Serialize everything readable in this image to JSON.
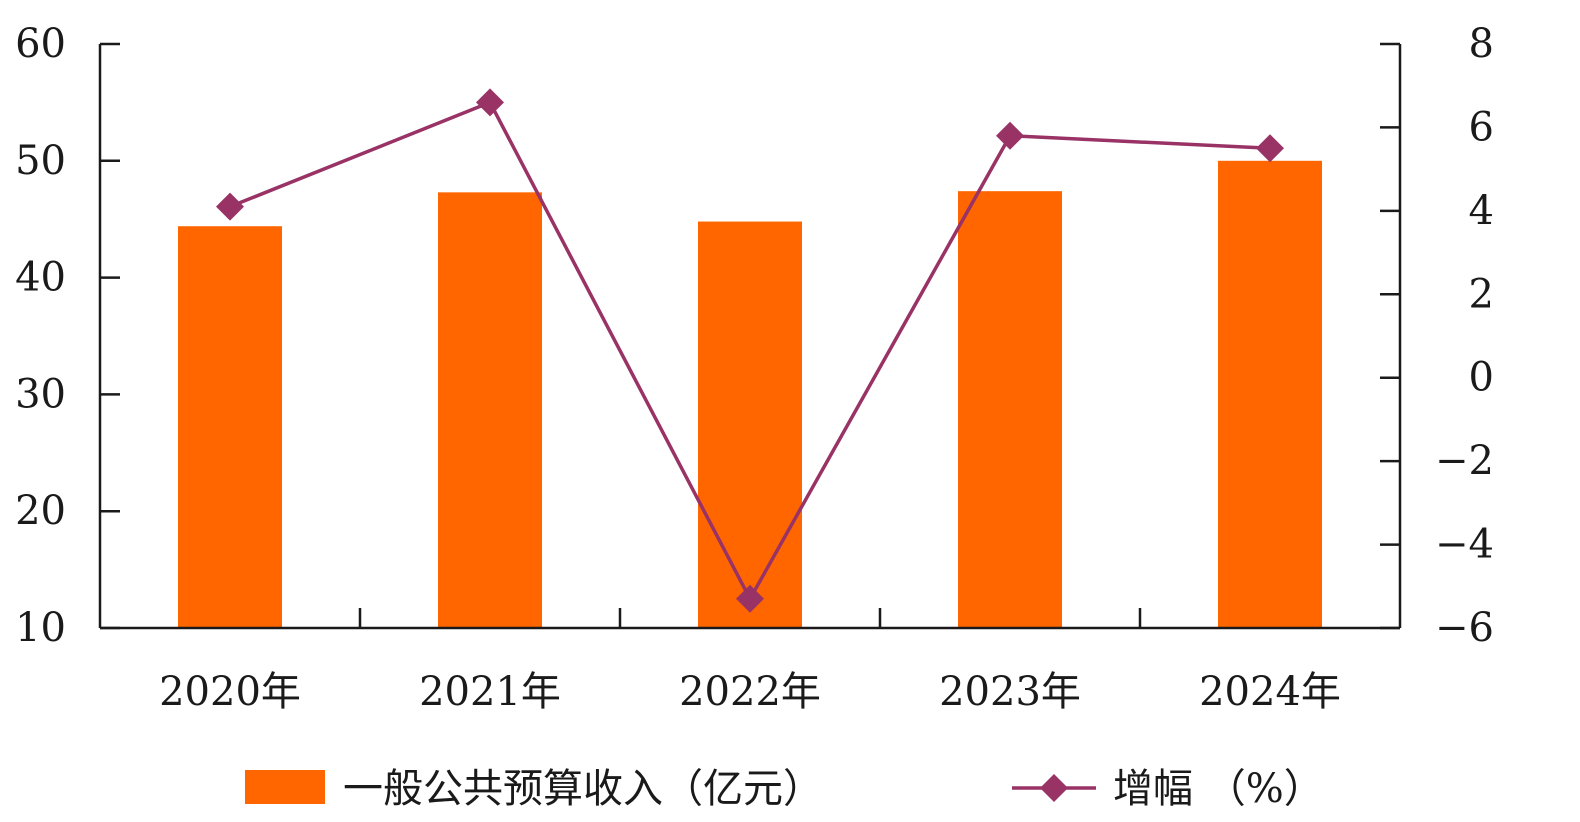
{
  "chart_data": {
    "type": "bar+line",
    "categories": [
      "2020年",
      "2021年",
      "2022年",
      "2023年",
      "2024年"
    ],
    "series": [
      {
        "name": "一般公共预算收入（亿元）",
        "type": "bar",
        "axis": "left",
        "color": "#ff6600",
        "values": [
          44.4,
          47.3,
          44.8,
          47.4,
          50.0
        ]
      },
      {
        "name": "增幅 （%）",
        "type": "line",
        "axis": "right",
        "color": "#993366",
        "marker": "diamond",
        "values": [
          4.1,
          6.6,
          -5.3,
          5.8,
          5.5
        ]
      }
    ],
    "y_left": {
      "min": 10,
      "max": 60,
      "ticks": [
        "10",
        "20",
        "30",
        "40",
        "50",
        "60"
      ]
    },
    "y_right": {
      "min": -6,
      "max": 8,
      "ticks": [
        "-6",
        "-4",
        "-2",
        "0",
        "2",
        "4",
        "6",
        "8"
      ]
    },
    "legend": "bottom"
  }
}
